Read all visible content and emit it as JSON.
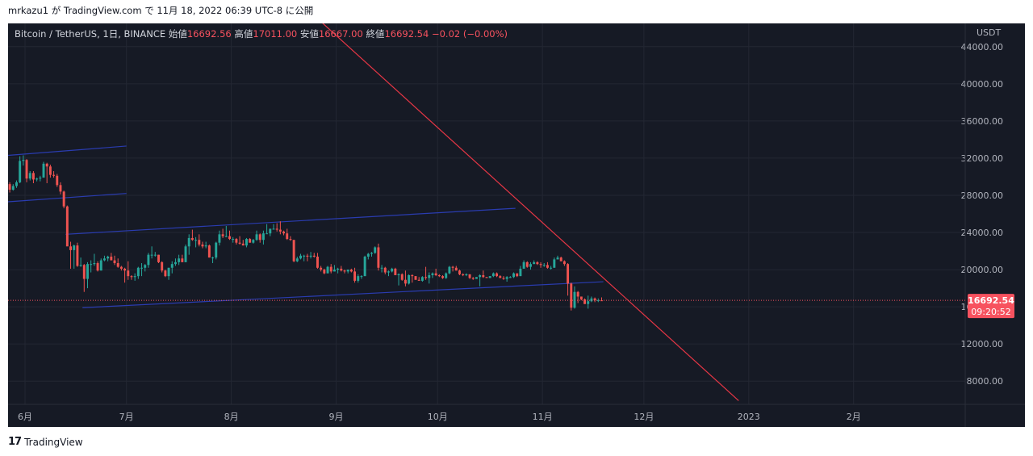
{
  "header": {
    "user": "mrkazu1",
    "particle": "が",
    "site": "TradingView.com",
    "particle2": "で",
    "date": "11月 18, 2022 06:39 UTC-8",
    "suffix": "に公開"
  },
  "legend": {
    "symbol": "Bitcoin / TetherUS, 1日, BINANCE",
    "open_label": "始値",
    "open": "16692.56",
    "high_label": "高値",
    "high": "17011.00",
    "low_label": "安値",
    "low": "16667.00",
    "close_label": "終値",
    "close": "16692.54",
    "change": "−0.02 (−0.00%)"
  },
  "price_tag": {
    "price": "16692.54",
    "countdown": "09:20:52",
    "color": "#f7525f"
  },
  "footer": {
    "brand_logo": "17",
    "brand": "TradingView"
  },
  "colors": {
    "background": "#161a25",
    "grid": "#232733",
    "up": "#26a69a",
    "down": "#ef5350",
    "channel": "#2a3cb0",
    "trendline": "#e53645",
    "text": "#b2b5be"
  },
  "chart_data": {
    "type": "candlestick",
    "title": "Bitcoin / TetherUS, 1日, BINANCE",
    "ylabel": "USDT",
    "ylim": [
      5500,
      46500
    ],
    "y_ticks": [
      "8000.00",
      "12000.00",
      "16000.00",
      "20000.00",
      "24000.00",
      "28000.00",
      "32000.00",
      "36000.00",
      "40000.00",
      "44000.00"
    ],
    "x_range": [
      "2022-05-27",
      "2023-03-06"
    ],
    "x_ticks": [
      {
        "date": "2022-06-01",
        "label": "6月"
      },
      {
        "date": "2022-07-01",
        "label": "7月"
      },
      {
        "date": "2022-08-01",
        "label": "8月"
      },
      {
        "date": "2022-09-01",
        "label": "9月"
      },
      {
        "date": "2022-10-01",
        "label": "10月"
      },
      {
        "date": "2022-11-01",
        "label": "11月"
      },
      {
        "date": "2022-12-01",
        "label": "12月"
      },
      {
        "date": "2023-01-01",
        "label": "2023"
      },
      {
        "date": "2023-02-01",
        "label": "2月"
      }
    ],
    "grid": true,
    "last_price": 16692.54,
    "candles": [
      [
        "2022-05-27",
        29200,
        29400,
        28300,
        28600
      ],
      [
        "2022-05-28",
        28600,
        29200,
        28500,
        29000
      ],
      [
        "2022-05-29",
        29000,
        29600,
        28800,
        29400
      ],
      [
        "2022-05-30",
        29400,
        32200,
        29300,
        31700
      ],
      [
        "2022-05-31",
        31700,
        32300,
        31200,
        31800
      ],
      [
        "2022-06-01",
        31800,
        31900,
        29400,
        29800
      ],
      [
        "2022-06-02",
        29800,
        30600,
        29600,
        30400
      ],
      [
        "2022-06-03",
        30400,
        30600,
        29300,
        29700
      ],
      [
        "2022-06-04",
        29700,
        29900,
        29500,
        29800
      ],
      [
        "2022-06-05",
        29800,
        30100,
        29500,
        29900
      ],
      [
        "2022-06-06",
        29900,
        31600,
        29900,
        31400
      ],
      [
        "2022-06-07",
        31400,
        31500,
        29300,
        31100
      ],
      [
        "2022-06-08",
        31100,
        31300,
        29900,
        30200
      ],
      [
        "2022-06-09",
        30200,
        30600,
        29900,
        30100
      ],
      [
        "2022-06-10",
        30100,
        30300,
        28900,
        29100
      ],
      [
        "2022-06-11",
        29100,
        29400,
        28100,
        28400
      ],
      [
        "2022-06-12",
        28400,
        28500,
        26600,
        26800
      ],
      [
        "2022-06-13",
        26800,
        26900,
        22600,
        22500
      ],
      [
        "2022-06-14",
        22500,
        23000,
        20100,
        22100
      ],
      [
        "2022-06-15",
        22100,
        22700,
        20100,
        22600
      ],
      [
        "2022-06-16",
        22600,
        22900,
        20300,
        20400
      ],
      [
        "2022-06-17",
        20400,
        21300,
        20300,
        20500
      ],
      [
        "2022-06-18",
        20500,
        20600,
        17600,
        19000
      ],
      [
        "2022-06-19",
        19000,
        20800,
        18000,
        20600
      ],
      [
        "2022-06-20",
        20600,
        21000,
        19700,
        20600
      ],
      [
        "2022-06-21",
        20600,
        21700,
        20400,
        20700
      ],
      [
        "2022-06-22",
        20700,
        20900,
        19800,
        19900
      ],
      [
        "2022-06-23",
        19900,
        21200,
        19900,
        21000
      ],
      [
        "2022-06-24",
        21000,
        21500,
        20900,
        21200
      ],
      [
        "2022-06-25",
        21200,
        21500,
        20900,
        21400
      ],
      [
        "2022-06-26",
        21400,
        21800,
        21000,
        21000
      ],
      [
        "2022-06-27",
        21000,
        21500,
        20500,
        20700
      ],
      [
        "2022-06-28",
        20700,
        21200,
        20200,
        20300
      ],
      [
        "2022-06-29",
        20300,
        20400,
        19900,
        20100
      ],
      [
        "2022-06-30",
        20100,
        20200,
        18600,
        19900
      ],
      [
        "2022-07-01",
        19900,
        20900,
        18900,
        19300
      ],
      [
        "2022-07-02",
        19300,
        19400,
        18900,
        19200
      ],
      [
        "2022-07-03",
        19200,
        19600,
        18800,
        19300
      ],
      [
        "2022-07-04",
        19300,
        20300,
        19000,
        20200
      ],
      [
        "2022-07-05",
        20200,
        20700,
        19300,
        20200
      ],
      [
        "2022-07-06",
        20200,
        20600,
        19800,
        20500
      ],
      [
        "2022-07-07",
        20500,
        21800,
        20200,
        21600
      ],
      [
        "2022-07-08",
        21600,
        22500,
        21200,
        21600
      ],
      [
        "2022-07-09",
        21600,
        21900,
        21400,
        21600
      ],
      [
        "2022-07-10",
        21600,
        21600,
        20700,
        20800
      ],
      [
        "2022-07-11",
        20800,
        20900,
        19700,
        19900
      ],
      [
        "2022-07-12",
        19900,
        20000,
        19200,
        19300
      ],
      [
        "2022-07-13",
        19300,
        20200,
        18900,
        20200
      ],
      [
        "2022-07-14",
        20200,
        20900,
        19600,
        20600
      ],
      [
        "2022-07-15",
        20600,
        21200,
        20400,
        20800
      ],
      [
        "2022-07-16",
        20800,
        21600,
        20500,
        21200
      ],
      [
        "2022-07-17",
        21200,
        21600,
        20800,
        20800
      ],
      [
        "2022-07-18",
        20800,
        22700,
        20800,
        22500
      ],
      [
        "2022-07-19",
        22500,
        23800,
        21600,
        23400
      ],
      [
        "2022-07-20",
        23400,
        24300,
        23100,
        23200
      ],
      [
        "2022-07-21",
        23200,
        23500,
        22400,
        23200
      ],
      [
        "2022-07-22",
        23200,
        23800,
        22500,
        22700
      ],
      [
        "2022-07-23",
        22700,
        23000,
        22300,
        22500
      ],
      [
        "2022-07-24",
        22500,
        23000,
        22300,
        22600
      ],
      [
        "2022-07-25",
        22600,
        22700,
        21300,
        21300
      ],
      [
        "2022-07-26",
        21300,
        21400,
        20700,
        21300
      ],
      [
        "2022-07-27",
        21300,
        23000,
        21100,
        22900
      ],
      [
        "2022-07-28",
        22900,
        24200,
        22600,
        23800
      ],
      [
        "2022-07-29",
        23800,
        24400,
        23400,
        23600
      ],
      [
        "2022-07-30",
        23600,
        24700,
        23500,
        23600
      ],
      [
        "2022-07-31",
        23600,
        24200,
        23200,
        23300
      ],
      [
        "2022-08-01",
        23300,
        23500,
        22900,
        23300
      ],
      [
        "2022-08-02",
        23300,
        23400,
        22700,
        22900
      ],
      [
        "2022-08-03",
        22900,
        23600,
        22700,
        22800
      ],
      [
        "2022-08-04",
        22800,
        23200,
        22600,
        22600
      ],
      [
        "2022-08-05",
        22600,
        23400,
        22400,
        23300
      ],
      [
        "2022-08-06",
        23300,
        23400,
        22900,
        22900
      ],
      [
        "2022-08-07",
        22900,
        23300,
        22800,
        23200
      ],
      [
        "2022-08-08",
        23200,
        24200,
        23100,
        23800
      ],
      [
        "2022-08-09",
        23800,
        23900,
        22900,
        23200
      ],
      [
        "2022-08-10",
        23200,
        24200,
        22700,
        23900
      ],
      [
        "2022-08-11",
        23900,
        24900,
        23900,
        23900
      ],
      [
        "2022-08-12",
        23900,
        24400,
        23600,
        24400
      ],
      [
        "2022-08-13",
        24400,
        24900,
        24300,
        24400
      ],
      [
        "2022-08-14",
        24400,
        25000,
        24100,
        24300
      ],
      [
        "2022-08-15",
        24300,
        25200,
        23800,
        24100
      ],
      [
        "2022-08-16",
        24100,
        24200,
        23700,
        23900
      ],
      [
        "2022-08-17",
        23900,
        24400,
        23200,
        23300
      ],
      [
        "2022-08-18",
        23300,
        23600,
        23100,
        23200
      ],
      [
        "2022-08-19",
        23200,
        23200,
        20800,
        20900
      ],
      [
        "2022-08-20",
        20900,
        21400,
        20800,
        21200
      ],
      [
        "2022-08-21",
        21200,
        21700,
        21100,
        21500
      ],
      [
        "2022-08-22",
        21500,
        21600,
        20900,
        21500
      ],
      [
        "2022-08-23",
        21500,
        21700,
        20900,
        21400
      ],
      [
        "2022-08-24",
        21400,
        21900,
        21200,
        21500
      ],
      [
        "2022-08-25",
        21500,
        21800,
        21300,
        21400
      ],
      [
        "2022-08-26",
        21400,
        21800,
        20100,
        20200
      ],
      [
        "2022-08-27",
        20200,
        20400,
        19800,
        20000
      ],
      [
        "2022-08-28",
        20000,
        20100,
        19500,
        19600
      ],
      [
        "2022-08-29",
        19600,
        20400,
        19600,
        20300
      ],
      [
        "2022-08-30",
        20300,
        20600,
        19600,
        19800
      ],
      [
        "2022-08-31",
        19800,
        20500,
        19800,
        20000
      ],
      [
        "2022-09-01",
        20000,
        20200,
        19600,
        20100
      ],
      [
        "2022-09-02",
        20100,
        20400,
        19800,
        19900
      ],
      [
        "2022-09-03",
        19900,
        20000,
        19600,
        19800
      ],
      [
        "2022-09-04",
        19800,
        20000,
        19600,
        20000
      ],
      [
        "2022-09-05",
        20000,
        20100,
        19700,
        19800
      ],
      [
        "2022-09-06",
        19800,
        20200,
        18600,
        18800
      ],
      [
        "2022-09-07",
        18800,
        19500,
        18600,
        19300
      ],
      [
        "2022-09-08",
        19300,
        19400,
        19000,
        19300
      ],
      [
        "2022-09-09",
        19300,
        21500,
        19300,
        21400
      ],
      [
        "2022-09-10",
        21400,
        21800,
        21100,
        21700
      ],
      [
        "2022-09-11",
        21700,
        21900,
        21400,
        21800
      ],
      [
        "2022-09-12",
        21800,
        22500,
        21700,
        22400
      ],
      [
        "2022-09-13",
        22400,
        22800,
        19900,
        20200
      ],
      [
        "2022-09-14",
        20200,
        20500,
        19700,
        20200
      ],
      [
        "2022-09-15",
        20200,
        20300,
        19500,
        19700
      ],
      [
        "2022-09-16",
        19700,
        19900,
        19300,
        19800
      ],
      [
        "2022-09-17",
        19800,
        20200,
        19700,
        20100
      ],
      [
        "2022-09-18",
        20100,
        20200,
        19400,
        19400
      ],
      [
        "2022-09-19",
        19400,
        19600,
        18300,
        19500
      ],
      [
        "2022-09-20",
        19500,
        19600,
        18800,
        18900
      ],
      [
        "2022-09-21",
        18900,
        19900,
        18200,
        18500
      ],
      [
        "2022-09-22",
        18500,
        19500,
        18400,
        19400
      ],
      [
        "2022-09-23",
        19400,
        19500,
        18600,
        19300
      ],
      [
        "2022-09-24",
        19300,
        19300,
        18900,
        18900
      ],
      [
        "2022-09-25",
        18900,
        19200,
        18800,
        18800
      ],
      [
        "2022-09-26",
        18800,
        19300,
        18700,
        19200
      ],
      [
        "2022-09-27",
        19200,
        20300,
        18900,
        19100
      ],
      [
        "2022-09-28",
        19100,
        19700,
        18500,
        19400
      ],
      [
        "2022-09-29",
        19400,
        19700,
        19100,
        19600
      ],
      [
        "2022-09-30",
        19600,
        20100,
        19300,
        19400
      ],
      [
        "2022-10-01",
        19400,
        19500,
        19200,
        19300
      ],
      [
        "2022-10-02",
        19300,
        19400,
        19000,
        19100
      ],
      [
        "2022-10-03",
        19100,
        19700,
        19000,
        19600
      ],
      [
        "2022-10-04",
        19600,
        20400,
        19500,
        20300
      ],
      [
        "2022-10-05",
        20300,
        20400,
        19800,
        20200
      ],
      [
        "2022-10-06",
        20200,
        20400,
        19900,
        19900
      ],
      [
        "2022-10-07",
        19900,
        20000,
        19400,
        19500
      ],
      [
        "2022-10-08",
        19500,
        19600,
        19300,
        19400
      ],
      [
        "2022-10-09",
        19400,
        19600,
        19300,
        19500
      ],
      [
        "2022-10-10",
        19500,
        19500,
        19000,
        19100
      ],
      [
        "2022-10-11",
        19100,
        19200,
        18900,
        19000
      ],
      [
        "2022-10-12",
        19000,
        19200,
        19000,
        19200
      ],
      [
        "2022-10-13",
        19200,
        19500,
        18200,
        19400
      ],
      [
        "2022-10-14",
        19400,
        19900,
        19100,
        19200
      ],
      [
        "2022-10-15",
        19200,
        19200,
        19100,
        19100
      ],
      [
        "2022-10-16",
        19100,
        19300,
        19100,
        19300
      ],
      [
        "2022-10-17",
        19300,
        19700,
        19200,
        19600
      ],
      [
        "2022-10-18",
        19600,
        19700,
        19200,
        19300
      ],
      [
        "2022-10-19",
        19300,
        19400,
        19100,
        19100
      ],
      [
        "2022-10-20",
        19100,
        19300,
        18900,
        19000
      ],
      [
        "2022-10-21",
        19000,
        19300,
        18700,
        19200
      ],
      [
        "2022-10-22",
        19200,
        19300,
        19100,
        19200
      ],
      [
        "2022-10-23",
        19200,
        19700,
        19100,
        19600
      ],
      [
        "2022-10-24",
        19600,
        19600,
        19200,
        19300
      ],
      [
        "2022-10-25",
        19300,
        20400,
        19300,
        20100
      ],
      [
        "2022-10-26",
        20100,
        21000,
        20100,
        20800
      ],
      [
        "2022-10-27",
        20800,
        20900,
        20200,
        20300
      ],
      [
        "2022-10-28",
        20300,
        20800,
        20000,
        20600
      ],
      [
        "2022-10-29",
        20600,
        21000,
        20600,
        20800
      ],
      [
        "2022-10-30",
        20800,
        20900,
        20500,
        20600
      ],
      [
        "2022-10-31",
        20600,
        20800,
        20200,
        20500
      ],
      [
        "2022-11-01",
        20500,
        20700,
        20300,
        20500
      ],
      [
        "2022-11-02",
        20500,
        20800,
        20100,
        20200
      ],
      [
        "2022-11-03",
        20200,
        20400,
        20000,
        20200
      ],
      [
        "2022-11-04",
        20200,
        21300,
        20200,
        21100
      ],
      [
        "2022-11-05",
        21100,
        21500,
        21100,
        21300
      ],
      [
        "2022-11-06",
        21300,
        21400,
        20900,
        20900
      ],
      [
        "2022-11-07",
        20900,
        21000,
        20400,
        20600
      ],
      [
        "2022-11-08",
        20600,
        20700,
        17200,
        18500
      ],
      [
        "2022-11-09",
        18500,
        18600,
        15600,
        15900
      ],
      [
        "2022-11-10",
        15900,
        18200,
        15800,
        17600
      ],
      [
        "2022-11-11",
        17600,
        17700,
        16400,
        17100
      ],
      [
        "2022-11-12",
        17100,
        17100,
        16700,
        16800
      ],
      [
        "2022-11-13",
        16800,
        16900,
        16300,
        16300
      ],
      [
        "2022-11-14",
        16300,
        17200,
        15800,
        16600
      ],
      [
        "2022-11-15",
        16600,
        17100,
        16500,
        16900
      ],
      [
        "2022-11-16",
        16900,
        17000,
        16500,
        16700
      ],
      [
        "2022-11-17",
        16700,
        16900,
        16500,
        16700
      ],
      [
        "2022-11-18",
        16692.56,
        17011,
        16667,
        16692.54
      ]
    ],
    "channels": [
      [
        [
          "2022-05-27",
          32300
        ],
        [
          "2022-07-01",
          33300
        ]
      ],
      [
        [
          "2022-05-27",
          27300
        ],
        [
          "2022-07-01",
          28200
        ]
      ],
      [
        [
          "2022-06-13",
          23800
        ],
        [
          "2022-10-24",
          26600
        ]
      ],
      [
        [
          "2022-06-18",
          15900
        ],
        [
          "2022-11-19",
          18700
        ]
      ]
    ],
    "trendline": [
      [
        "2022-08-19",
        49500
      ],
      [
        "2022-12-29",
        5900
      ]
    ]
  }
}
